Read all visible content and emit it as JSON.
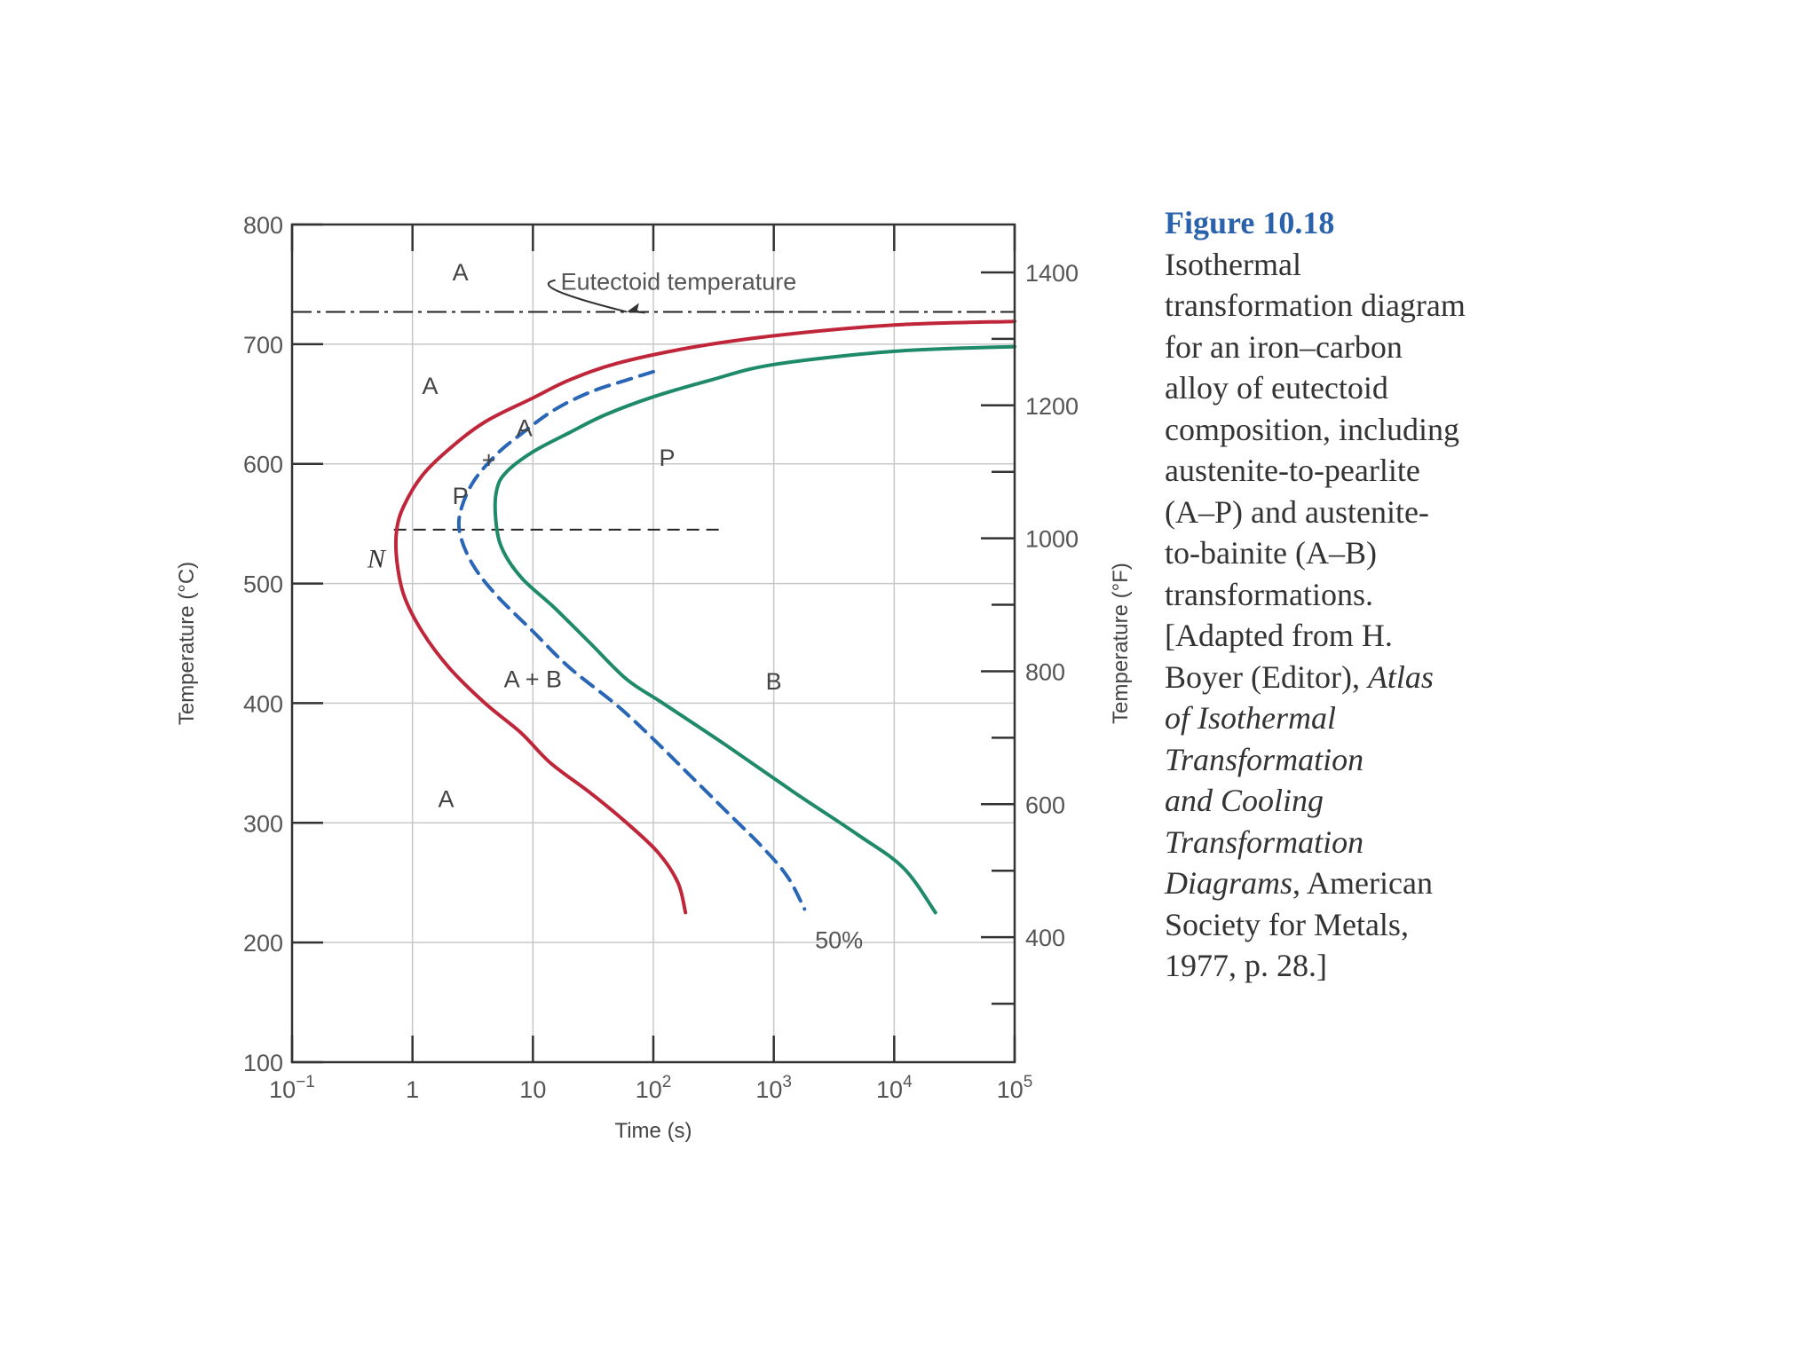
{
  "chart_data": {
    "type": "line",
    "title": "",
    "xlabel": "Time (s)",
    "ylabel": "Temperature (°C)",
    "y2label": "Temperature (°F)",
    "xscale": "log",
    "xlim": [
      0.1,
      100000
    ],
    "ylim": [
      100,
      800
    ],
    "y2lim": [
      212,
      1472
    ],
    "grid": true,
    "xticks": [
      {
        "value": 0.1,
        "base": "10",
        "exp": "−1"
      },
      {
        "value": 1,
        "base": "1",
        "exp": ""
      },
      {
        "value": 10,
        "base": "10",
        "exp": ""
      },
      {
        "value": 100,
        "base": "10",
        "exp": "2"
      },
      {
        "value": 1000,
        "base": "10",
        "exp": "3"
      },
      {
        "value": 10000,
        "base": "10",
        "exp": "4"
      },
      {
        "value": 100000,
        "base": "10",
        "exp": "5"
      }
    ],
    "yticks": [
      100,
      200,
      300,
      400,
      500,
      600,
      700,
      800
    ],
    "y2ticks": [
      400,
      600,
      800,
      1000,
      1200,
      1400
    ],
    "series": [
      {
        "key": "start",
        "color": "#c0263a",
        "style": "solid",
        "points": [
          [
            100000,
            719
          ],
          [
            10000,
            716
          ],
          [
            1000,
            707
          ],
          [
            200,
            697
          ],
          [
            50,
            684
          ],
          [
            20,
            670
          ],
          [
            10,
            655
          ],
          [
            4,
            635
          ],
          [
            2,
            612
          ],
          [
            1.2,
            590
          ],
          [
            0.85,
            565
          ],
          [
            0.74,
            545
          ],
          [
            0.74,
            520
          ],
          [
            0.85,
            490
          ],
          [
            1.2,
            460
          ],
          [
            2,
            430
          ],
          [
            4,
            400
          ],
          [
            8,
            375
          ],
          [
            14,
            350
          ],
          [
            30,
            325
          ],
          [
            60,
            300
          ],
          [
            110,
            275
          ],
          [
            160,
            250
          ],
          [
            185,
            225
          ]
        ]
      },
      {
        "key": "fifty",
        "color": "#2a66b6",
        "style": "dashed",
        "label": "50%",
        "points": [
          [
            100,
            677
          ],
          [
            60,
            670
          ],
          [
            30,
            660
          ],
          [
            15,
            645
          ],
          [
            8,
            625
          ],
          [
            5,
            608
          ],
          [
            3.2,
            585
          ],
          [
            2.5,
            560
          ],
          [
            2.5,
            540
          ],
          [
            3.2,
            515
          ],
          [
            5,
            490
          ],
          [
            10,
            460
          ],
          [
            20,
            430
          ],
          [
            50,
            398
          ],
          [
            100,
            370
          ],
          [
            200,
            340
          ],
          [
            400,
            310
          ],
          [
            800,
            280
          ],
          [
            1300,
            255
          ],
          [
            1800,
            228
          ]
        ]
      },
      {
        "key": "end",
        "color": "#1e8a6a",
        "style": "solid",
        "points": [
          [
            100000,
            698
          ],
          [
            10000,
            694
          ],
          [
            1000,
            683
          ],
          [
            300,
            670
          ],
          [
            100,
            656
          ],
          [
            40,
            641
          ],
          [
            20,
            626
          ],
          [
            10,
            610
          ],
          [
            6,
            593
          ],
          [
            5,
            578
          ],
          [
            4.9,
            555
          ],
          [
            5.5,
            530
          ],
          [
            8,
            505
          ],
          [
            15,
            480
          ],
          [
            30,
            450
          ],
          [
            60,
            420
          ],
          [
            120,
            400
          ],
          [
            400,
            365
          ],
          [
            1500,
            325
          ],
          [
            5000,
            290
          ],
          [
            12000,
            262
          ],
          [
            22000,
            225
          ]
        ]
      }
    ],
    "reference_lines": [
      {
        "key": "eutectoid",
        "value": 727,
        "style": "dash-dot",
        "from": 0.1,
        "to": 100000
      },
      {
        "key": "n-line",
        "value": 545,
        "style": "dashed",
        "from": 0.7,
        "to": 400
      }
    ],
    "annotations": [
      {
        "key": "eutectoid-label",
        "text": "Eutectoid temperature",
        "x": 17,
        "y": 752,
        "arrow_to": [
          60,
          727
        ]
      },
      {
        "key": "region-a-top",
        "text": "A",
        "x": 2.5,
        "y": 760
      },
      {
        "key": "region-a-upper",
        "text": "A",
        "x": 1.4,
        "y": 665
      },
      {
        "key": "region-a-lower",
        "text": "A",
        "x": 1.9,
        "y": 320
      },
      {
        "key": "region-n",
        "text": "N",
        "x": 0.5,
        "y": 520
      },
      {
        "key": "region-p-small",
        "text": "P",
        "x": 2.5,
        "y": 573
      },
      {
        "key": "region-plus",
        "text": "+",
        "x": 4.3,
        "y": 603
      },
      {
        "key": "region-a-small",
        "text": "A",
        "x": 8.5,
        "y": 630
      },
      {
        "key": "region-p",
        "text": "P",
        "x": 130,
        "y": 605
      },
      {
        "key": "region-ab",
        "text": "A + B",
        "x": 10,
        "y": 420
      },
      {
        "key": "region-b",
        "text": "B",
        "x": 1000,
        "y": 418
      },
      {
        "key": "fifty-label",
        "text": "50%",
        "x": 2200,
        "y": 202
      }
    ]
  },
  "caption": {
    "figure_label": "Figure 10.18",
    "lines": [
      "Isothermal",
      "transformation diagram",
      "for an iron–carbon",
      "alloy of eutectoid",
      "composition, including",
      "austenite-to-pearlite",
      "(A–P) and austenite-",
      "to-bainite (A–B)",
      "transformations.",
      "[Adapted from H.",
      "Boyer (Editor), Atlas",
      "of Isothermal",
      "Transformation",
      "and Cooling",
      "Transformation",
      "Diagrams, American",
      "Society for Metals,",
      "1977, p. 28.]"
    ],
    "italic_fragments": [
      "Atlas",
      "of Isothermal",
      "Transformation",
      "and Cooling",
      "Diagrams"
    ]
  }
}
